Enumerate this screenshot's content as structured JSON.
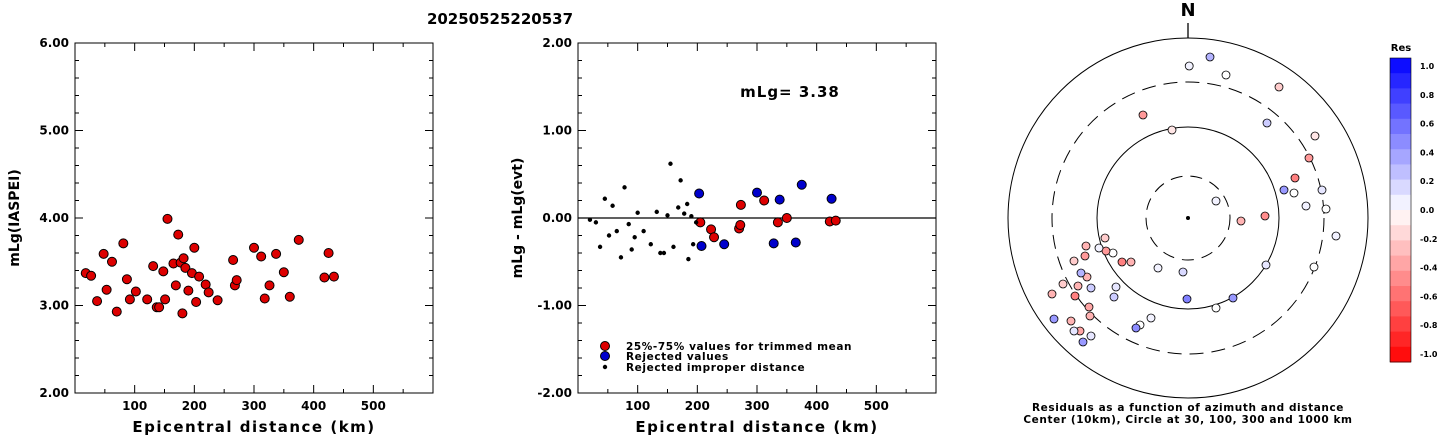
{
  "title": "20250525220537",
  "chart_data": [
    {
      "type": "scatter",
      "ylabel": "mLg(IASPEI)",
      "xlabel": "Epicentral distance (km)",
      "xlim": [
        0,
        600
      ],
      "ylim": [
        2.0,
        6.0
      ],
      "xticks": [
        "100",
        "200",
        "300",
        "400",
        "500"
      ],
      "yticks": [
        "2.00",
        "3.00",
        "4.00",
        "5.00",
        "6.00"
      ],
      "marker_color": "#dd0000",
      "points": [
        [
          18,
          3.37
        ],
        [
          27,
          3.34
        ],
        [
          37,
          3.05
        ],
        [
          48,
          3.59
        ],
        [
          53,
          3.18
        ],
        [
          62,
          3.5
        ],
        [
          70,
          2.93
        ],
        [
          81,
          3.71
        ],
        [
          87,
          3.3
        ],
        [
          92,
          3.07
        ],
        [
          102,
          3.16
        ],
        [
          121,
          3.07
        ],
        [
          131,
          3.45
        ],
        [
          137,
          2.98
        ],
        [
          141,
          2.98
        ],
        [
          148,
          3.39
        ],
        [
          151,
          3.07
        ],
        [
          155,
          3.99
        ],
        [
          165,
          3.48
        ],
        [
          169,
          3.23
        ],
        [
          173,
          3.81
        ],
        [
          177,
          3.49
        ],
        [
          180,
          2.91
        ],
        [
          182,
          3.54
        ],
        [
          185,
          3.43
        ],
        [
          190,
          3.17
        ],
        [
          196,
          3.37
        ],
        [
          200,
          3.66
        ],
        [
          203,
          3.04
        ],
        [
          208,
          3.33
        ],
        [
          219,
          3.24
        ],
        [
          224,
          3.15
        ],
        [
          239,
          3.06
        ],
        [
          265,
          3.52
        ],
        [
          268,
          3.23
        ],
        [
          271,
          3.29
        ],
        [
          300,
          3.66
        ],
        [
          312,
          3.56
        ],
        [
          318,
          3.08
        ],
        [
          326,
          3.23
        ],
        [
          337,
          3.59
        ],
        [
          350,
          3.38
        ],
        [
          360,
          3.1
        ],
        [
          375,
          3.75
        ],
        [
          418,
          3.32
        ],
        [
          425,
          3.6
        ],
        [
          434,
          3.33
        ]
      ]
    },
    {
      "type": "scatter",
      "ylabel": "mLg - mLg(evt)",
      "xlabel": "Epicentral distance (km)",
      "xlim": [
        0,
        600
      ],
      "ylim": [
        -2.0,
        2.0
      ],
      "xticks": [
        "100",
        "200",
        "300",
        "400",
        "500"
      ],
      "yticks": [
        "-2.00",
        "-1.00",
        "0.00",
        "1.00",
        "2.00"
      ],
      "annotation": "mLg= 3.38",
      "series": [
        {
          "name": "25%-75% values for trimmed mean",
          "color": "#dd0000",
          "points": [
            [
              205,
              -0.05
            ],
            [
              223,
              -0.13
            ],
            [
              228,
              -0.22
            ],
            [
              270,
              -0.12
            ],
            [
              272,
              -0.08
            ],
            [
              273,
              0.15
            ],
            [
              312,
              0.2
            ],
            [
              335,
              -0.05
            ],
            [
              350,
              0.0
            ],
            [
              422,
              -0.04
            ],
            [
              432,
              -0.03
            ]
          ]
        },
        {
          "name": "Rejected values",
          "color": "#0000cc",
          "points": [
            [
              203,
              0.28
            ],
            [
              207,
              -0.32
            ],
            [
              245,
              -0.3
            ],
            [
              300,
              0.29
            ],
            [
              328,
              -0.29
            ],
            [
              338,
              0.21
            ],
            [
              365,
              -0.28
            ],
            [
              375,
              0.38
            ],
            [
              425,
              0.22
            ]
          ]
        },
        {
          "name": "Rejected improper distance",
          "color": "#000000",
          "points": [
            [
              20,
              -0.02
            ],
            [
              30,
              -0.05
            ],
            [
              37,
              -0.33
            ],
            [
              45,
              0.22
            ],
            [
              52,
              -0.2
            ],
            [
              58,
              0.14
            ],
            [
              65,
              -0.15
            ],
            [
              72,
              -0.45
            ],
            [
              78,
              0.35
            ],
            [
              85,
              -0.07
            ],
            [
              90,
              -0.36
            ],
            [
              95,
              -0.22
            ],
            [
              100,
              0.06
            ],
            [
              110,
              -0.15
            ],
            [
              122,
              -0.3
            ],
            [
              132,
              0.07
            ],
            [
              138,
              -0.4
            ],
            [
              144,
              -0.4
            ],
            [
              150,
              0.03
            ],
            [
              155,
              0.62
            ],
            [
              160,
              -0.33
            ],
            [
              168,
              0.12
            ],
            [
              172,
              0.43
            ],
            [
              178,
              0.05
            ],
            [
              183,
              0.16
            ],
            [
              185,
              -0.47
            ],
            [
              190,
              0.02
            ],
            [
              193,
              -0.3
            ],
            [
              198,
              -0.05
            ]
          ]
        }
      ]
    },
    {
      "type": "scatter",
      "subtype": "polar",
      "north_label": "N",
      "caption_line1": "Residuals as a function of azimuth and distance",
      "caption_line2": "Center (10km), Circle at 30, 100, 300 and 1000 km",
      "colorbar_title": "Res",
      "colorbar_ticks": [
        "1.0",
        "0.8",
        "0.6",
        "0.4",
        "0.2",
        "0.0",
        "-0.2",
        "-0.4",
        "-0.6",
        "-0.8",
        "-1.0"
      ],
      "points_xy": [
        [
          1.2,
          -152
        ],
        [
          -45,
          -103
        ],
        [
          38,
          -143
        ],
        [
          22,
          -161
        ],
        [
          -16,
          -88
        ],
        [
          91,
          -131
        ],
        [
          79,
          -95
        ],
        [
          127,
          -82
        ],
        [
          121,
          -60
        ],
        [
          134,
          -28
        ],
        [
          118,
          -12
        ],
        [
          107,
          -40
        ],
        [
          106,
          -25
        ],
        [
          138,
          -9
        ],
        [
          148,
          18
        ],
        [
          96,
          -28
        ],
        [
          53,
          3
        ],
        [
          78,
          47
        ],
        [
          126,
          49
        ],
        [
          28,
          -17
        ],
        [
          77,
          -2
        ],
        [
          -5,
          54
        ],
        [
          -30,
          50
        ],
        [
          45,
          80
        ],
        [
          28,
          90
        ],
        [
          -1,
          81
        ],
        [
          -37,
          100
        ],
        [
          -48,
          107
        ],
        [
          -52,
          110
        ],
        [
          -72,
          69
        ],
        [
          -74,
          79
        ],
        [
          -57,
          44
        ],
        [
          -66,
          44
        ],
        [
          -75,
          35
        ],
        [
          -82,
          33
        ],
        [
          -83,
          20
        ],
        [
          -89,
          30
        ],
        [
          -110,
          68
        ],
        [
          -97,
          70
        ],
        [
          -101,
          59
        ],
        [
          -103,
          38
        ],
        [
          -102,
          28
        ],
        [
          -114,
          43
        ],
        [
          -107,
          55
        ],
        [
          -113,
          78
        ],
        [
          -108,
          113
        ],
        [
          -117,
          103
        ],
        [
          -125,
          66
        ],
        [
          -136,
          76
        ],
        [
          -98,
          98
        ],
        [
          -99,
          89
        ],
        [
          -97,
          118
        ],
        [
          -105,
          124
        ],
        [
          -114,
          113
        ],
        [
          -134,
          101
        ]
      ],
      "point_residuals": [
        0.05,
        -0.4,
        0.0,
        0.3,
        -0.1,
        -0.2,
        0.2,
        -0.1,
        -0.4,
        0.1,
        0.05,
        -0.5,
        0.0,
        0.0,
        0.05,
        0.4,
        -0.3,
        0.1,
        0.0,
        0.05,
        -0.45,
        0.15,
        0.05,
        0.4,
        0.0,
        0.5,
        0.05,
        0.0,
        0.45,
        0.1,
        0.2,
        -0.3,
        -0.5,
        0.0,
        -0.4,
        -0.2,
        0.05,
        -0.3,
        0.2,
        -0.3,
        -0.4,
        -0.3,
        -0.2,
        0.3,
        -0.5,
        -0.35,
        -0.3,
        -0.2,
        -0.3,
        -0.3,
        -0.35,
        0.1,
        0.4,
        0.1,
        0.4
      ]
    }
  ]
}
